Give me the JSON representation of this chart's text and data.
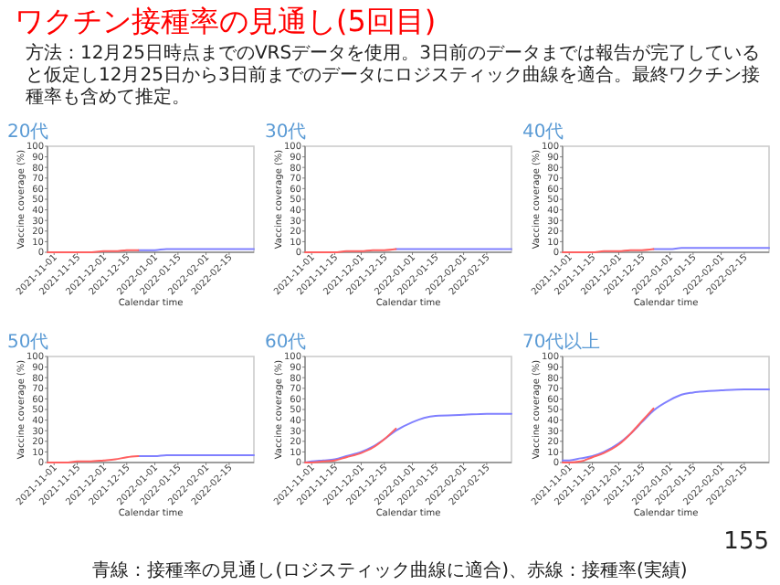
{
  "chart_data": [
    {
      "type": "other",
      "title": "ワクチン接種率の見通し(5回目)",
      "subtitle": "方法：12月25日時点までのVRSデータを使用。3日前のデータまでは報告が完了していると仮定し12月25日から3日前までのデータにロジスティック曲線を適合。最終ワクチン接種率も含めて推定。",
      "annotations": [
        "155",
        "青線：接種率の見通し(ロジスティック曲線に適合)、赤線：接種率(実績)"
      ]
    },
    {
      "type": "line",
      "title": "20代",
      "xlabel": "Calendar time",
      "ylabel": "Vaccine coverage (%)",
      "xlim": [
        "2021-10-28",
        "2022-03-02"
      ],
      "xticks": [
        "2021-11-01",
        "2021-11-15",
        "2021-12-01",
        "2021-12-15",
        "2022-01-01",
        "2022-01-15",
        "2022-02-01",
        "2022-02-15"
      ],
      "ylim": [
        0,
        100
      ],
      "yticks": [
        0,
        10,
        20,
        30,
        40,
        50,
        60,
        70,
        80,
        90,
        100
      ],
      "series": [
        {
          "color": "#8080ff",
          "x": [
            "2021-12-22",
            "2022-01-01",
            "2022-01-08",
            "2022-01-15",
            "2022-02-01",
            "2022-02-15",
            "2022-03-02"
          ],
          "values": [
            2,
            2,
            3,
            3,
            3,
            3,
            3
          ]
        },
        {
          "color": "#ff6060",
          "x": [
            "2021-10-28",
            "2021-11-01",
            "2021-11-08",
            "2021-11-15",
            "2021-11-22",
            "2021-12-01",
            "2021-12-08",
            "2021-12-15",
            "2021-12-22"
          ],
          "values": [
            0,
            0,
            0,
            0,
            0,
            1,
            1,
            2,
            2
          ]
        }
      ]
    },
    {
      "type": "line",
      "title": "30代",
      "xlabel": "Calendar time",
      "ylabel": "Vaccine coverage (%)",
      "xlim": [
        "2021-10-28",
        "2022-03-02"
      ],
      "xticks": [
        "2021-11-01",
        "2021-11-15",
        "2021-12-01",
        "2021-12-15",
        "2022-01-01",
        "2022-01-15",
        "2022-02-01",
        "2022-02-15"
      ],
      "ylim": [
        0,
        100
      ],
      "yticks": [
        0,
        10,
        20,
        30,
        40,
        50,
        60,
        70,
        80,
        90,
        100
      ],
      "series": [
        {
          "color": "#8080ff",
          "x": [
            "2021-12-22",
            "2022-01-01",
            "2022-01-08",
            "2022-01-15",
            "2022-02-01",
            "2022-02-15",
            "2022-03-02"
          ],
          "values": [
            3,
            3,
            3,
            3,
            3,
            3,
            3
          ]
        },
        {
          "color": "#ff6060",
          "x": [
            "2021-10-28",
            "2021-11-01",
            "2021-11-08",
            "2021-11-15",
            "2021-11-22",
            "2021-12-01",
            "2021-12-08",
            "2021-12-15",
            "2021-12-22"
          ],
          "values": [
            0,
            0,
            0,
            0,
            1,
            1,
            2,
            2,
            3
          ]
        }
      ]
    },
    {
      "type": "line",
      "title": "40代",
      "xlabel": "Calendar time",
      "ylabel": "Vaccine coverage (%)",
      "xlim": [
        "2021-10-28",
        "2022-03-02"
      ],
      "xticks": [
        "2021-11-01",
        "2021-11-15",
        "2021-12-01",
        "2021-12-15",
        "2022-01-01",
        "2022-01-15",
        "2022-02-01",
        "2022-02-15"
      ],
      "ylim": [
        0,
        100
      ],
      "yticks": [
        0,
        10,
        20,
        30,
        40,
        50,
        60,
        70,
        80,
        90,
        100
      ],
      "series": [
        {
          "color": "#8080ff",
          "x": [
            "2021-12-22",
            "2022-01-01",
            "2022-01-08",
            "2022-01-15",
            "2022-02-01",
            "2022-02-15",
            "2022-03-02"
          ],
          "values": [
            3,
            3,
            4,
            4,
            4,
            4,
            4
          ]
        },
        {
          "color": "#ff6060",
          "x": [
            "2021-10-28",
            "2021-11-01",
            "2021-11-08",
            "2021-11-15",
            "2021-11-22",
            "2021-12-01",
            "2021-12-08",
            "2021-12-15",
            "2021-12-22"
          ],
          "values": [
            0,
            0,
            0,
            0,
            1,
            1,
            2,
            2,
            3
          ]
        }
      ]
    },
    {
      "type": "line",
      "title": "50代",
      "xlabel": "Calendar time",
      "ylabel": "Vaccine coverage (%)",
      "xlim": [
        "2021-10-28",
        "2022-03-02"
      ],
      "xticks": [
        "2021-11-01",
        "2021-11-15",
        "2021-12-01",
        "2021-12-15",
        "2022-01-01",
        "2022-01-15",
        "2022-02-01",
        "2022-02-15"
      ],
      "ylim": [
        0,
        100
      ],
      "yticks": [
        0,
        10,
        20,
        30,
        40,
        50,
        60,
        70,
        80,
        90,
        100
      ],
      "series": [
        {
          "color": "#8080ff",
          "x": [
            "2021-12-22",
            "2022-01-01",
            "2022-01-08",
            "2022-01-15",
            "2022-02-01",
            "2022-02-15",
            "2022-03-02"
          ],
          "values": [
            6,
            6,
            7,
            7,
            7,
            7,
            7
          ]
        },
        {
          "color": "#ff6060",
          "x": [
            "2021-10-28",
            "2021-11-01",
            "2021-11-08",
            "2021-11-15",
            "2021-11-22",
            "2021-12-01",
            "2021-12-08",
            "2021-12-15",
            "2021-12-22"
          ],
          "values": [
            0,
            0,
            0,
            1,
            1,
            2,
            3,
            5,
            6
          ]
        }
      ]
    },
    {
      "type": "line",
      "title": "60代",
      "xlabel": "Calendar time",
      "ylabel": "Vaccine coverage (%)",
      "xlim": [
        "2021-10-28",
        "2022-03-02"
      ],
      "xticks": [
        "2021-11-01",
        "2021-11-15",
        "2021-12-01",
        "2021-12-15",
        "2022-01-01",
        "2022-01-15",
        "2022-02-01",
        "2022-02-15"
      ],
      "ylim": [
        0,
        100
      ],
      "yticks": [
        0,
        10,
        20,
        30,
        40,
        50,
        60,
        70,
        80,
        90,
        100
      ],
      "series": [
        {
          "color": "#8080ff",
          "x": [
            "2021-10-28",
            "2021-11-01",
            "2021-11-08",
            "2021-11-15",
            "2021-11-22",
            "2021-12-01",
            "2021-12-08",
            "2021-12-15",
            "2021-12-22",
            "2022-01-01",
            "2022-01-08",
            "2022-01-15",
            "2022-02-01",
            "2022-02-15",
            "2022-03-02"
          ],
          "values": [
            0,
            1,
            2,
            3,
            6,
            10,
            15,
            22,
            30,
            38,
            42,
            44,
            45,
            46,
            46
          ]
        },
        {
          "color": "#ff6060",
          "x": [
            "2021-10-28",
            "2021-11-01",
            "2021-11-08",
            "2021-11-15",
            "2021-11-22",
            "2021-12-01",
            "2021-12-08",
            "2021-12-15",
            "2021-12-22"
          ],
          "values": [
            0,
            0,
            1,
            2,
            5,
            9,
            14,
            22,
            32
          ]
        }
      ]
    },
    {
      "type": "line",
      "title": "70代以上",
      "xlabel": "Calendar time",
      "ylabel": "Vaccine coverage (%)",
      "xlim": [
        "2021-10-28",
        "2022-03-02"
      ],
      "xticks": [
        "2021-11-01",
        "2021-11-15",
        "2021-12-01",
        "2021-12-15",
        "2022-01-01",
        "2022-01-15",
        "2022-02-01",
        "2022-02-15"
      ],
      "ylim": [
        0,
        100
      ],
      "yticks": [
        0,
        10,
        20,
        30,
        40,
        50,
        60,
        70,
        80,
        90,
        100
      ],
      "series": [
        {
          "color": "#8080ff",
          "x": [
            "2021-10-28",
            "2021-11-01",
            "2021-11-08",
            "2021-11-15",
            "2021-11-22",
            "2021-12-01",
            "2021-12-08",
            "2021-12-15",
            "2021-12-22",
            "2022-01-01",
            "2022-01-08",
            "2022-01-15",
            "2022-02-01",
            "2022-02-15",
            "2022-03-02"
          ],
          "values": [
            2,
            2,
            4,
            6,
            10,
            18,
            27,
            38,
            49,
            59,
            64,
            66,
            68,
            69,
            69
          ]
        },
        {
          "color": "#ff6060",
          "x": [
            "2021-10-28",
            "2021-11-01",
            "2021-11-08",
            "2021-11-15",
            "2021-11-22",
            "2021-12-01",
            "2021-12-08",
            "2021-12-15",
            "2021-12-22"
          ],
          "values": [
            0,
            0,
            1,
            5,
            9,
            17,
            27,
            39,
            51
          ]
        }
      ]
    }
  ]
}
